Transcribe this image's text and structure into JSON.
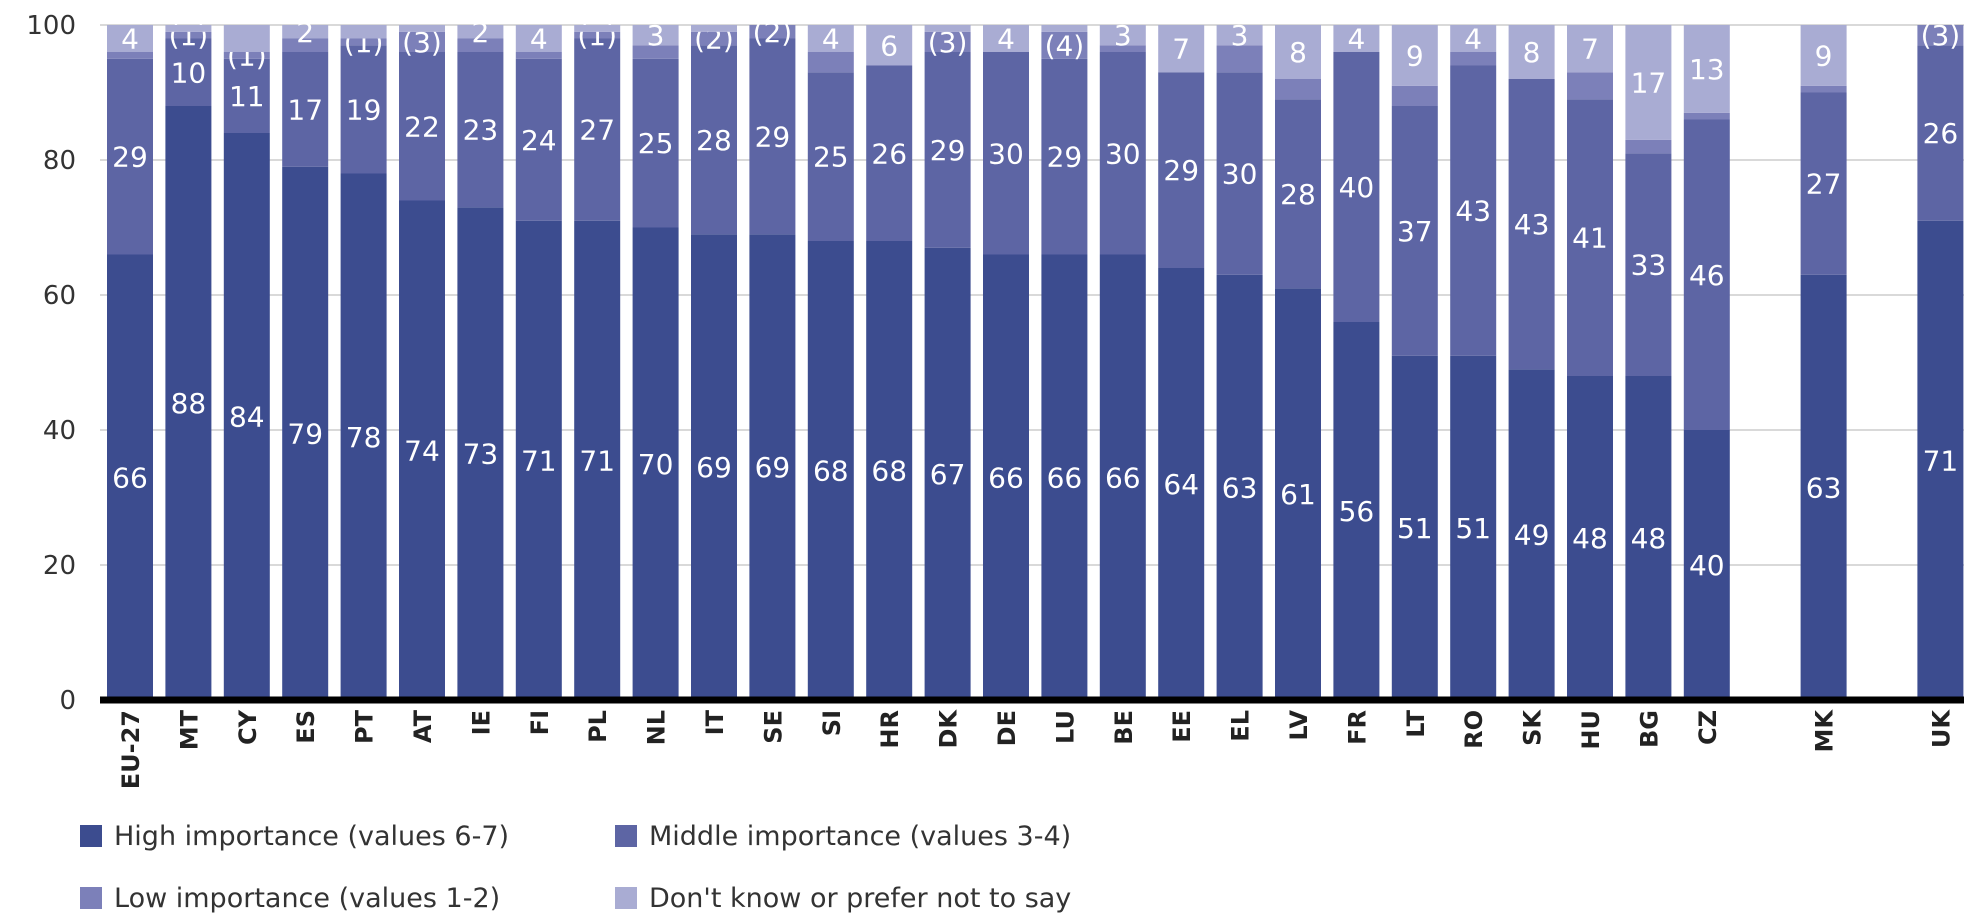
{
  "colors": {
    "high": "#3c4c8f",
    "middle": "#5d65a4",
    "low": "#7c80b9",
    "dk": "#a9acd3",
    "grid": "#d9d9d9",
    "axis": "#000000"
  },
  "chart_data": {
    "type": "bar",
    "stacked": true,
    "title": "",
    "xlabel": "",
    "ylabel": "",
    "ylim": [
      0,
      100
    ],
    "yticks": [
      0,
      20,
      40,
      60,
      80,
      100
    ],
    "grid": true,
    "legend_position": "bottom",
    "categories": [
      "EU-27",
      "MT",
      "CY",
      "ES",
      "PT",
      "AT",
      "IE",
      "FI",
      "PL",
      "NL",
      "IT",
      "SE",
      "SI",
      "HR",
      "DK",
      "DE",
      "LU",
      "BE",
      "EE",
      "EL",
      "LV",
      "FR",
      "LT",
      "RO",
      "SK",
      "HU",
      "BG",
      "CZ",
      "",
      "MK",
      "",
      "UK"
    ],
    "series": [
      {
        "name": "High importance (values 6-7)",
        "color_key": "high",
        "values": [
          66,
          88,
          84,
          79,
          78,
          74,
          73,
          71,
          71,
          70,
          69,
          69,
          68,
          68,
          67,
          66,
          66,
          66,
          64,
          63,
          61,
          56,
          51,
          51,
          49,
          48,
          48,
          40,
          null,
          63,
          null,
          71
        ],
        "labels": [
          "66",
          "88",
          "84",
          "79",
          "78",
          "74",
          "73",
          "71",
          "71",
          "70",
          "69",
          "69",
          "68",
          "68",
          "67",
          "66",
          "66",
          "66",
          "64",
          "63",
          "61",
          "56",
          "51",
          "51",
          "49",
          "48",
          "48",
          "40",
          "",
          "63",
          "",
          "71"
        ]
      },
      {
        "name": "Middle importance (values 3-4)",
        "color_key": "middle",
        "values": [
          29,
          10,
          11,
          17,
          19,
          22,
          23,
          24,
          27,
          25,
          28,
          29,
          25,
          26,
          29,
          30,
          29,
          30,
          29,
          30,
          28,
          40,
          37,
          43,
          43,
          41,
          33,
          46,
          null,
          27,
          null,
          26
        ],
        "labels": [
          "29",
          "10",
          "11",
          "17",
          "19",
          "22",
          "23",
          "24",
          "27",
          "25",
          "28",
          "29",
          "25",
          "26",
          "29",
          "30",
          "29",
          "30",
          "29",
          "30",
          "28",
          "40",
          "37",
          "43",
          "43",
          "41",
          "33",
          "46",
          "",
          "27",
          "",
          "26"
        ]
      },
      {
        "name": "Low importance (values 1-2)",
        "color_key": "low",
        "values": [
          1,
          1,
          1,
          2,
          1,
          3,
          2,
          1,
          1,
          2,
          2,
          2,
          3,
          0,
          3,
          0,
          4,
          1,
          0,
          4,
          3,
          0,
          3,
          2,
          0,
          4,
          2,
          1,
          null,
          1,
          null,
          3
        ],
        "labels": [
          "",
          "(1)",
          "(1)",
          "",
          "(1)",
          "(3)",
          "",
          "",
          "(1)",
          "",
          "(2)",
          "(2)",
          "",
          "",
          "(3)",
          "",
          "(4)",
          "",
          "",
          "",
          "",
          "",
          "",
          "",
          "",
          "",
          "",
          "",
          "",
          "",
          "",
          "(3)"
        ]
      },
      {
        "name": "Don't know or prefer not to say",
        "color_key": "dk",
        "values": [
          4,
          1,
          4,
          2,
          2,
          1,
          2,
          4,
          1,
          3,
          1,
          0,
          4,
          6,
          1,
          4,
          1,
          3,
          7,
          3,
          8,
          4,
          9,
          4,
          8,
          7,
          17,
          13,
          null,
          9,
          null,
          0
        ],
        "labels": [
          "4",
          "",
          "",
          "2",
          "",
          "",
          "2",
          "4",
          "",
          "3",
          "",
          "",
          "4",
          "6",
          "",
          "4",
          "",
          "3",
          "7",
          "3",
          "8",
          "4",
          "9",
          "4",
          "8",
          "7",
          "17",
          "13",
          "",
          "9",
          "",
          ""
        ]
      }
    ]
  }
}
